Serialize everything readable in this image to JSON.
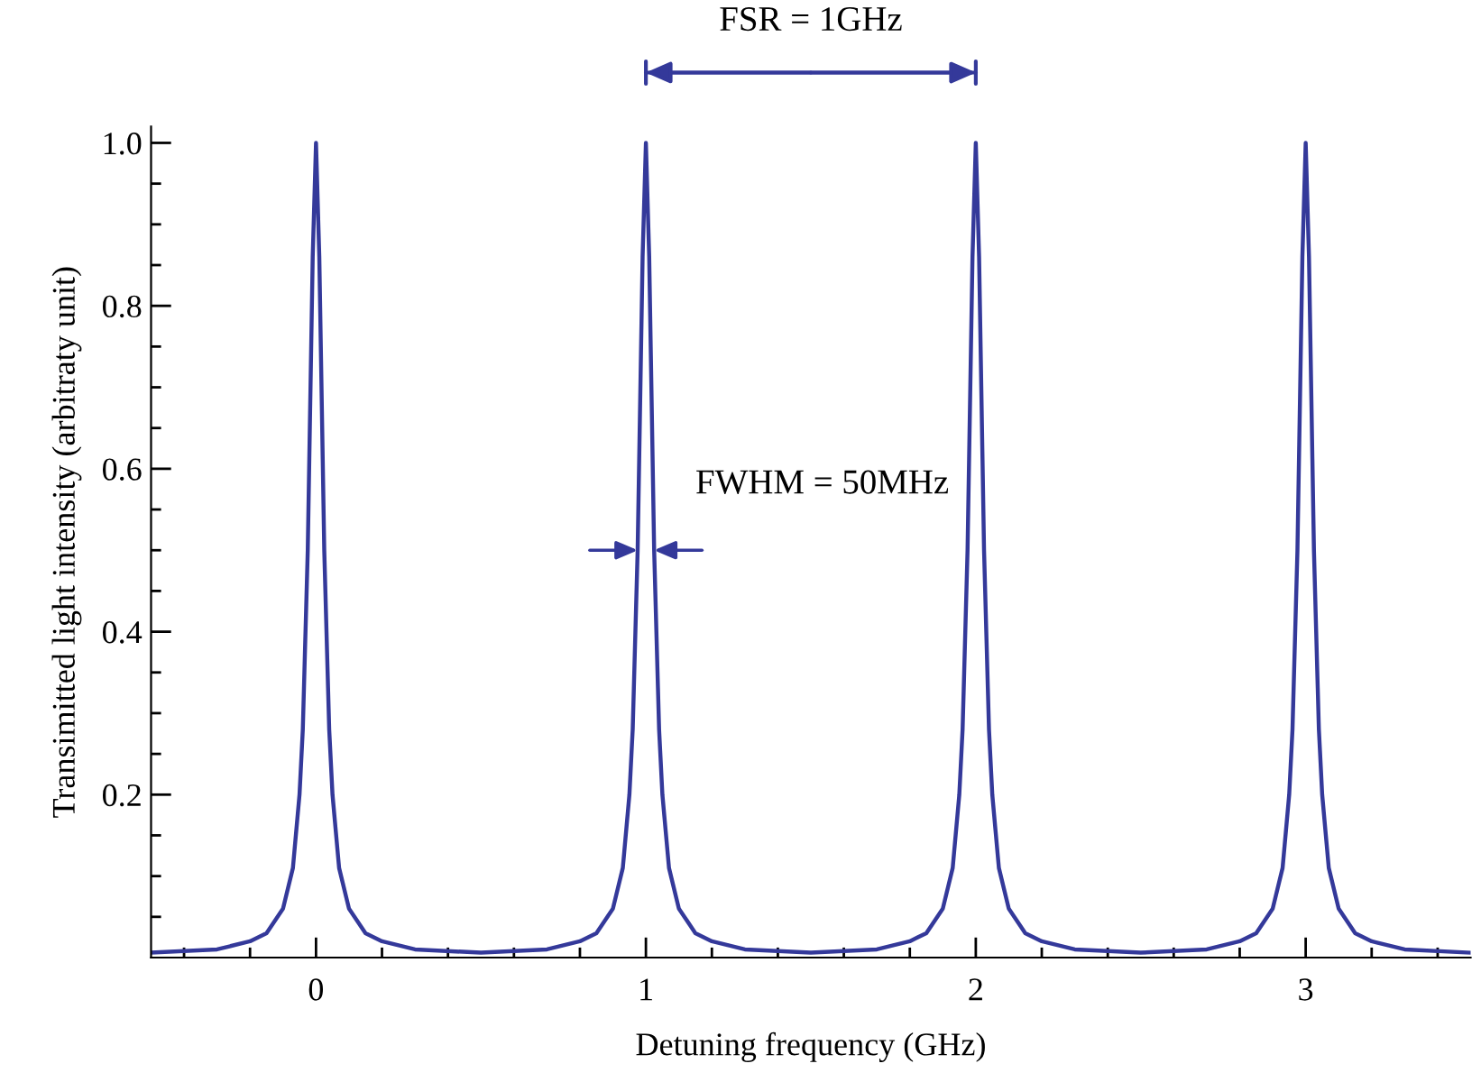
{
  "chart_data": {
    "type": "line",
    "xlabel": "Detuning frequency (GHz)",
    "ylabel": "Transimitted light intensity (arbitraty unit)",
    "x": [
      -0.5,
      -0.3,
      -0.2,
      -0.15,
      -0.1,
      -0.07,
      -0.05,
      -0.04,
      -0.025,
      -0.015,
      -0.01,
      0,
      0.01,
      0.015,
      0.025,
      0.04,
      0.05,
      0.07,
      0.1,
      0.15,
      0.2,
      0.3,
      0.5,
      0.7,
      0.8,
      0.85,
      0.9,
      0.93,
      0.95,
      0.96,
      0.975,
      0.985,
      0.99,
      1,
      1.01,
      1.015,
      1.025,
      1.04,
      1.05,
      1.07,
      1.1,
      1.15,
      1.2,
      1.3,
      1.5,
      1.7,
      1.8,
      1.85,
      1.9,
      1.93,
      1.95,
      1.96,
      1.975,
      1.985,
      1.99,
      2,
      2.01,
      2.015,
      2.025,
      2.04,
      2.05,
      2.07,
      2.1,
      2.15,
      2.2,
      2.3,
      2.5,
      2.7,
      2.8,
      2.85,
      2.9,
      2.93,
      2.95,
      2.96,
      2.975,
      2.985,
      2.99,
      3,
      3.01,
      3.015,
      3.025,
      3.04,
      3.05,
      3.07,
      3.1,
      3.15,
      3.2,
      3.3,
      3.5
    ],
    "series": [
      {
        "color": "#34399a",
        "values": [
          0.006,
          0.01,
          0.02,
          0.03,
          0.06,
          0.11,
          0.2,
          0.28,
          0.5,
          0.74,
          0.86,
          1,
          0.86,
          0.74,
          0.5,
          0.28,
          0.2,
          0.11,
          0.06,
          0.03,
          0.02,
          0.01,
          0.006,
          0.01,
          0.02,
          0.03,
          0.06,
          0.11,
          0.2,
          0.28,
          0.5,
          0.74,
          0.86,
          1,
          0.86,
          0.74,
          0.5,
          0.28,
          0.2,
          0.11,
          0.06,
          0.03,
          0.02,
          0.01,
          0.006,
          0.01,
          0.02,
          0.03,
          0.06,
          0.11,
          0.2,
          0.28,
          0.5,
          0.74,
          0.86,
          1,
          0.86,
          0.74,
          0.5,
          0.28,
          0.2,
          0.11,
          0.06,
          0.03,
          0.02,
          0.01,
          0.006,
          0.01,
          0.02,
          0.03,
          0.06,
          0.11,
          0.2,
          0.28,
          0.5,
          0.74,
          0.86,
          1,
          0.86,
          0.74,
          0.5,
          0.28,
          0.2,
          0.11,
          0.06,
          0.03,
          0.02,
          0.01,
          0.006
        ]
      }
    ],
    "xlim": [
      -0.5,
      3.5
    ],
    "ylim": [
      0,
      1.02
    ],
    "xticks": [
      {
        "value": -0.4,
        "label": null
      },
      {
        "value": -0.2,
        "label": null
      },
      0,
      {
        "value": 0.2,
        "label": null
      },
      {
        "value": 0.4,
        "label": null
      },
      {
        "value": 0.6,
        "label": null
      },
      {
        "value": 0.8,
        "label": null
      },
      1,
      {
        "value": 1.2,
        "label": null
      },
      {
        "value": 1.4,
        "label": null
      },
      {
        "value": 1.6,
        "label": null
      },
      {
        "value": 1.8,
        "label": null
      },
      2,
      {
        "value": 2.2,
        "label": null
      },
      {
        "value": 2.4,
        "label": null
      },
      {
        "value": 2.6,
        "label": null
      },
      {
        "value": 2.8,
        "label": null
      },
      3,
      {
        "value": 3.2,
        "label": null
      },
      {
        "value": 3.4,
        "label": null
      }
    ],
    "yticks": [
      {
        "value": 0.05,
        "label": null
      },
      {
        "value": 0.1,
        "label": null
      },
      {
        "value": 0.15,
        "label": null
      },
      0.2,
      {
        "value": 0.25,
        "label": null
      },
      {
        "value": 0.3,
        "label": null
      },
      {
        "value": 0.35,
        "label": null
      },
      0.4,
      {
        "value": 0.45,
        "label": null
      },
      {
        "value": 0.5,
        "label": null
      },
      {
        "value": 0.55,
        "label": null
      },
      0.6,
      {
        "value": 0.65,
        "label": null
      },
      {
        "value": 0.7,
        "label": null
      },
      {
        "value": 0.75,
        "label": null
      },
      0.8,
      {
        "value": 0.85,
        "label": null
      },
      {
        "value": 0.9,
        "label": null
      },
      {
        "value": 0.95,
        "label": null
      },
      {
        "value": 1.0,
        "label": "1.0"
      }
    ],
    "annotations": [
      "FSR = 1GHz",
      "FWHM = 50MHz"
    ],
    "grid": false,
    "legend": false,
    "marker": "none",
    "line_style": "solid"
  }
}
